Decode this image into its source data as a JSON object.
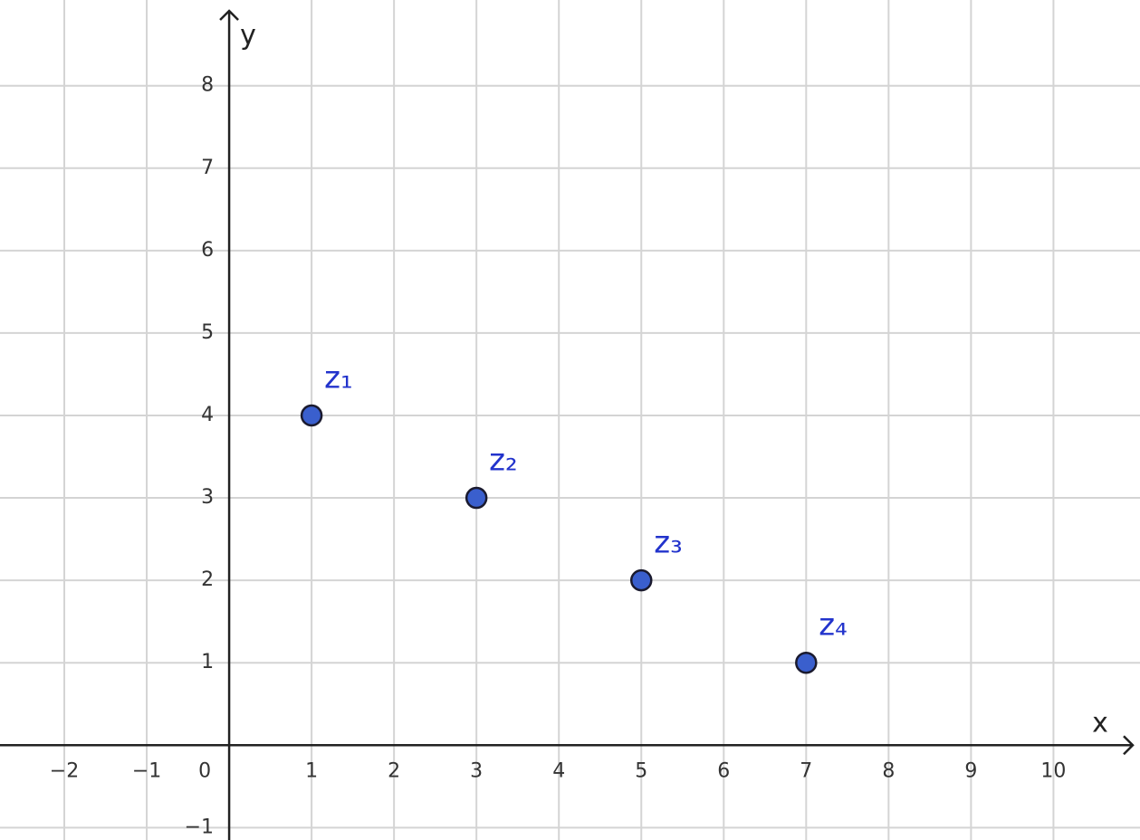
{
  "chart_data": {
    "type": "scatter",
    "x_label": "x",
    "y_label": "y",
    "xlim": [
      -2.78,
      11.05
    ],
    "ylim": [
      -1.15,
      9.04
    ],
    "xticks": [
      {
        "value": -2,
        "label": "−2"
      },
      {
        "value": -1,
        "label": "−1"
      },
      0,
      1,
      2,
      3,
      4,
      5,
      6,
      7,
      8,
      9,
      10
    ],
    "yticks": [
      {
        "value": -1,
        "label": "−1"
      },
      1,
      2,
      3,
      4,
      5,
      6,
      7,
      8
    ],
    "grid": true,
    "series": [
      {
        "color": "#3a5fcd",
        "x": [
          1,
          3,
          5,
          7
        ],
        "values": [
          4,
          3,
          2,
          1
        ],
        "point_labels": [
          "z₁",
          "z₂",
          "z₃",
          "z₄"
        ]
      }
    ]
  }
}
